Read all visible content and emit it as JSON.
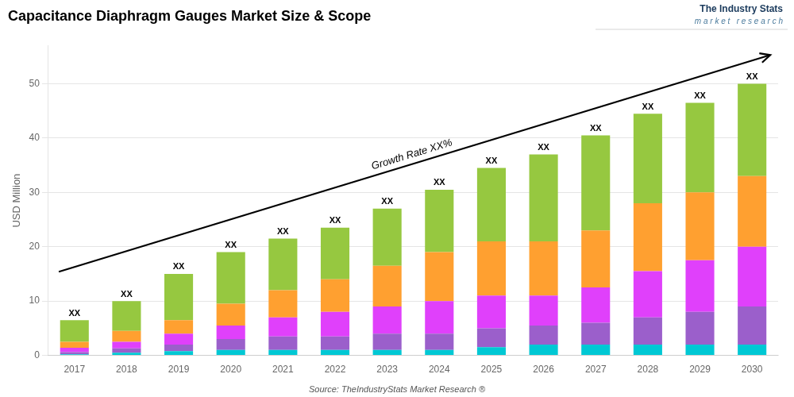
{
  "chart_data": {
    "type": "bar",
    "title": "Capacitance Diaphragm Gauges Market Size & Scope",
    "ylabel": "USD Million",
    "categories": [
      "2017",
      "2018",
      "2019",
      "2020",
      "2021",
      "2022",
      "2023",
      "2024",
      "2025",
      "2026",
      "2027",
      "2028",
      "2029",
      "2030"
    ],
    "series": [
      {
        "color": "#00c8d4",
        "values": [
          0.2,
          0.5,
          0.8,
          1.0,
          1.0,
          1.0,
          1.0,
          1.0,
          1.5,
          2.0,
          2.0,
          2.0,
          2.0,
          2.0
        ]
      },
      {
        "color": "#9b5fcb",
        "values": [
          0.4,
          0.8,
          1.2,
          2.0,
          2.5,
          2.5,
          3.0,
          3.0,
          3.5,
          3.5,
          4.0,
          5.0,
          6.0,
          7.0
        ]
      },
      {
        "color": "#e040fb",
        "values": [
          0.8,
          1.2,
          2.0,
          2.5,
          3.5,
          4.5,
          5.0,
          6.0,
          6.0,
          5.5,
          6.5,
          8.5,
          9.5,
          11.0
        ]
      },
      {
        "color": "#ffa030",
        "values": [
          1.1,
          2.0,
          2.5,
          4.0,
          5.0,
          6.0,
          7.5,
          9.0,
          10.0,
          10.0,
          10.5,
          12.5,
          12.5,
          13.0
        ]
      },
      {
        "color": "#96c840",
        "values": [
          4.0,
          5.5,
          8.5,
          9.5,
          9.5,
          9.5,
          10.5,
          11.5,
          13.5,
          16.0,
          17.5,
          16.5,
          16.5,
          17.0
        ]
      }
    ],
    "totals": [
      6.5,
      10.0,
      15.0,
      19.0,
      21.5,
      23.5,
      27.0,
      30.5,
      34.5,
      37.0,
      40.5,
      44.5,
      46.5,
      50.0
    ],
    "total_labels": [
      "XX",
      "XX",
      "XX",
      "XX",
      "XX",
      "XX",
      "XX",
      "XX",
      "XX",
      "XX",
      "XX",
      "XX",
      "XX",
      "XX"
    ],
    "annotations": [
      "Growth Rate XX%",
      "Source: TheIndustryStats Market Research ®",
      "The Industry Stats",
      "m a r k e t   r e s e a r c h"
    ],
    "stacked": true,
    "ylim": [
      0,
      57
    ],
    "yticks": [
      0,
      10,
      20,
      30,
      40,
      50
    ],
    "grid": true
  }
}
